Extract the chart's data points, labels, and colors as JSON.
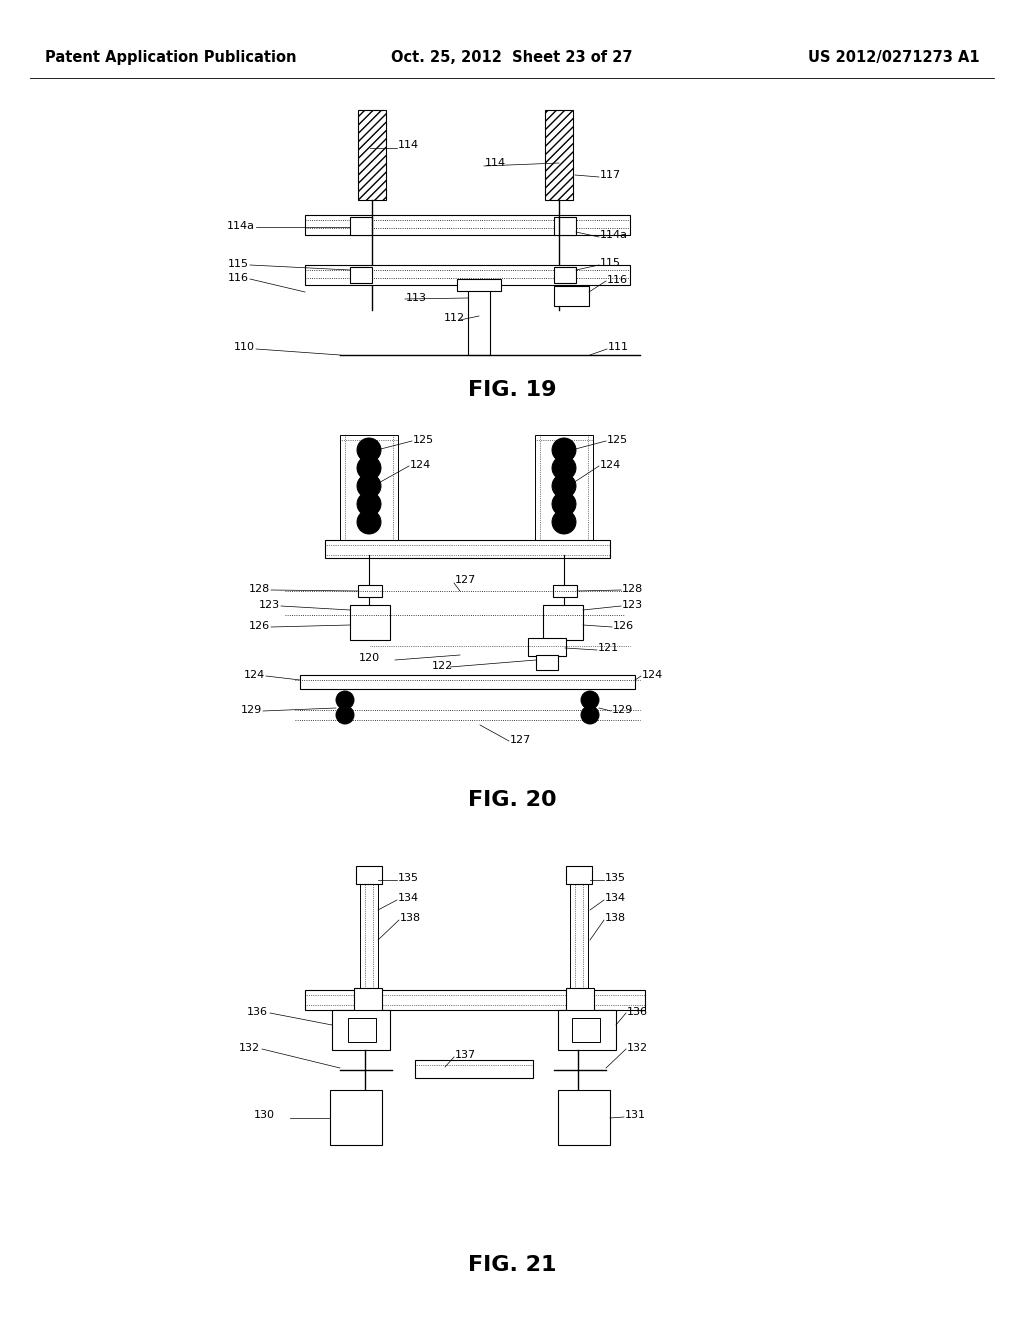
{
  "background_color": "#ffffff",
  "page_header": {
    "left": "Patent Application Publication",
    "center": "Oct. 25, 2012  Sheet 23 of 27",
    "right": "US 2012/0271273 A1",
    "fontsize": 10.5
  }
}
